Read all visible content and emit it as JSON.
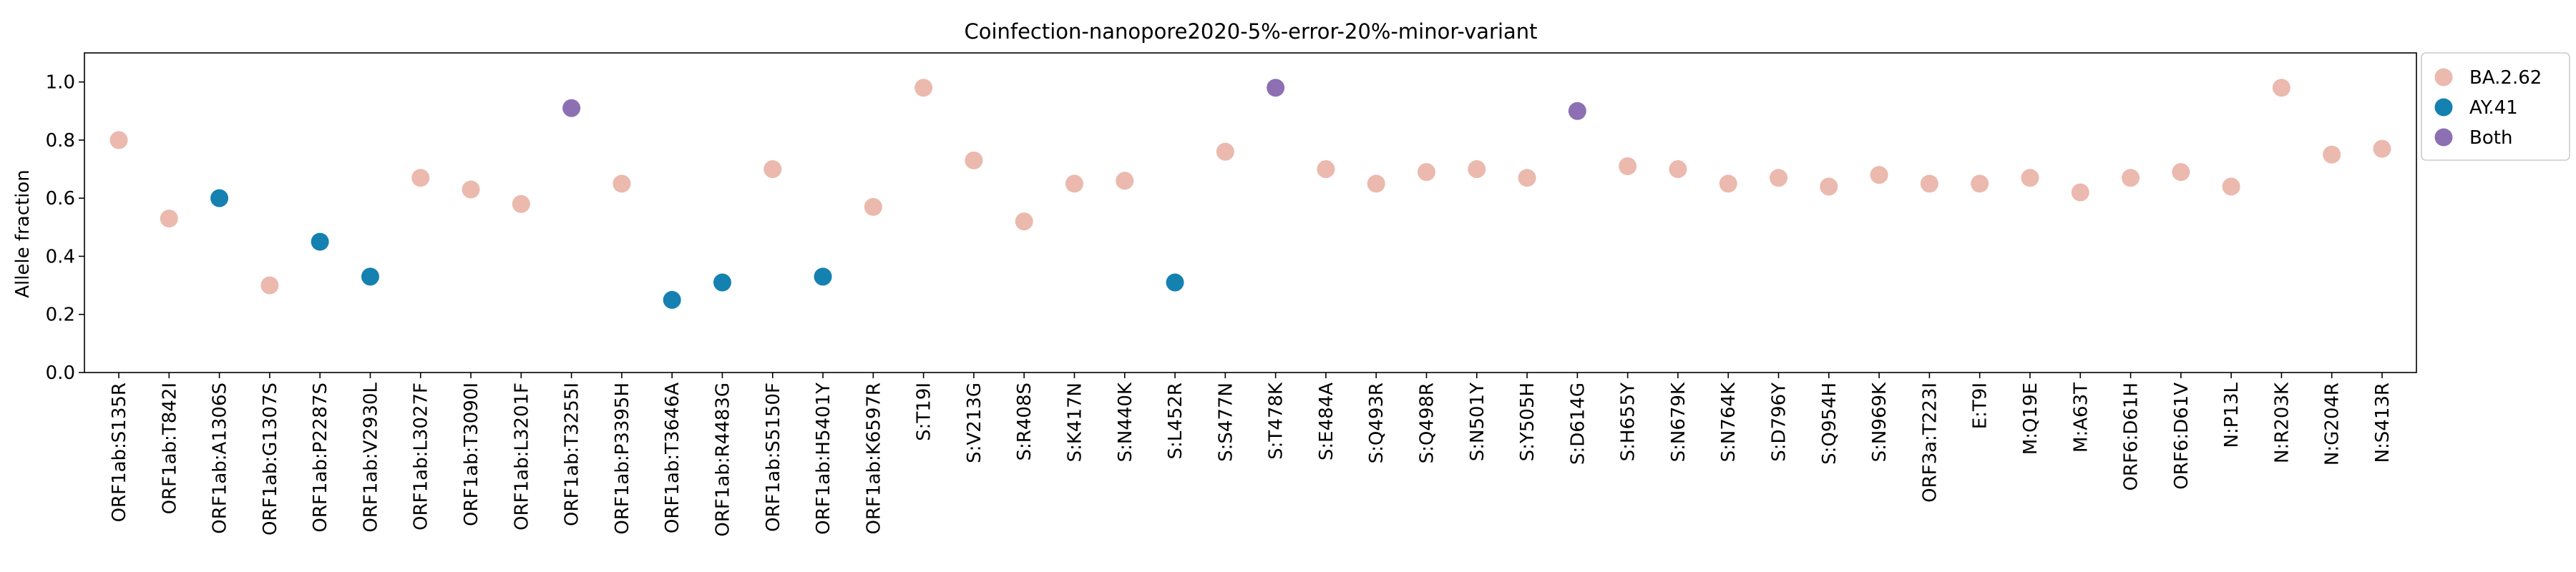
{
  "chart_data": {
    "type": "scatter",
    "title": "Coinfection-nanopore2020-5%-error-20%-minor-variant",
    "xlabel": "",
    "ylabel": "Allele fraction",
    "ylim": [
      0,
      1.1
    ],
    "yticks": [
      "0.0",
      "0.2",
      "0.4",
      "0.6",
      "0.8",
      "1.0"
    ],
    "grid": false,
    "legend_position": "top-right",
    "categories": [
      "ORF1ab:S135R",
      "ORF1ab:T842I",
      "ORF1ab:A1306S",
      "ORF1ab:G1307S",
      "ORF1ab:P2287S",
      "ORF1ab:V2930L",
      "ORF1ab:L3027F",
      "ORF1ab:T3090I",
      "ORF1ab:L3201F",
      "ORF1ab:T3255I",
      "ORF1ab:P3395H",
      "ORF1ab:T3646A",
      "ORF1ab:R4483G",
      "ORF1ab:S5150F",
      "ORF1ab:H5401Y",
      "ORF1ab:K6597R",
      "S:T19I",
      "S:V213G",
      "S:R408S",
      "S:K417N",
      "S:N440K",
      "S:L452R",
      "S:S477N",
      "S:T478K",
      "S:E484A",
      "S:Q493R",
      "S:Q498R",
      "S:N501Y",
      "S:Y505H",
      "S:D614G",
      "S:H655Y",
      "S:N679K",
      "S:N764K",
      "S:D796Y",
      "S:Q954H",
      "S:N969K",
      "ORF3a:T223I",
      "E:T9I",
      "M:Q19E",
      "M:A63T",
      "ORF6:D61H",
      "ORF6:D61V",
      "N:P13L",
      "N:R203K",
      "N:G204R",
      "N:S413R"
    ],
    "series": [
      {
        "name": "BA.2.62",
        "color": "#ebb9ae",
        "points": [
          {
            "x": "ORF1ab:S135R",
            "y": 0.8
          },
          {
            "x": "ORF1ab:T842I",
            "y": 0.53
          },
          {
            "x": "ORF1ab:G1307S",
            "y": 0.3
          },
          {
            "x": "ORF1ab:L3027F",
            "y": 0.67
          },
          {
            "x": "ORF1ab:T3090I",
            "y": 0.63
          },
          {
            "x": "ORF1ab:L3201F",
            "y": 0.58
          },
          {
            "x": "ORF1ab:P3395H",
            "y": 0.65
          },
          {
            "x": "ORF1ab:S5150F",
            "y": 0.7
          },
          {
            "x": "ORF1ab:K6597R",
            "y": 0.57
          },
          {
            "x": "S:T19I",
            "y": 0.98
          },
          {
            "x": "S:V213G",
            "y": 0.73
          },
          {
            "x": "S:R408S",
            "y": 0.52
          },
          {
            "x": "S:K417N",
            "y": 0.65
          },
          {
            "x": "S:N440K",
            "y": 0.66
          },
          {
            "x": "S:S477N",
            "y": 0.76
          },
          {
            "x": "S:E484A",
            "y": 0.7
          },
          {
            "x": "S:Q493R",
            "y": 0.65
          },
          {
            "x": "S:Q498R",
            "y": 0.69
          },
          {
            "x": "S:N501Y",
            "y": 0.7
          },
          {
            "x": "S:Y505H",
            "y": 0.67
          },
          {
            "x": "S:H655Y",
            "y": 0.71
          },
          {
            "x": "S:N679K",
            "y": 0.7
          },
          {
            "x": "S:N764K",
            "y": 0.65
          },
          {
            "x": "S:D796Y",
            "y": 0.67
          },
          {
            "x": "S:Q954H",
            "y": 0.64
          },
          {
            "x": "S:N969K",
            "y": 0.68
          },
          {
            "x": "ORF3a:T223I",
            "y": 0.65
          },
          {
            "x": "E:T9I",
            "y": 0.65
          },
          {
            "x": "M:Q19E",
            "y": 0.67
          },
          {
            "x": "M:A63T",
            "y": 0.62
          },
          {
            "x": "ORF6:D61H",
            "y": 0.67
          },
          {
            "x": "ORF6:D61V",
            "y": 0.69
          },
          {
            "x": "N:P13L",
            "y": 0.64
          },
          {
            "x": "N:R203K",
            "y": 0.98
          },
          {
            "x": "N:G204R",
            "y": 0.75
          },
          {
            "x": "N:S413R",
            "y": 0.77
          }
        ]
      },
      {
        "name": "AY.41",
        "color": "#1481b1",
        "points": [
          {
            "x": "ORF1ab:A1306S",
            "y": 0.6
          },
          {
            "x": "ORF1ab:P2287S",
            "y": 0.45
          },
          {
            "x": "ORF1ab:V2930L",
            "y": 0.33
          },
          {
            "x": "ORF1ab:T3646A",
            "y": 0.25
          },
          {
            "x": "ORF1ab:R4483G",
            "y": 0.31
          },
          {
            "x": "ORF1ab:H5401Y",
            "y": 0.33
          },
          {
            "x": "S:L452R",
            "y": 0.31
          }
        ]
      },
      {
        "name": "Both",
        "color": "#8d70b3",
        "points": [
          {
            "x": "ORF1ab:T3255I",
            "y": 0.91
          },
          {
            "x": "S:T478K",
            "y": 0.98
          },
          {
            "x": "S:D614G",
            "y": 0.9
          }
        ]
      }
    ]
  }
}
